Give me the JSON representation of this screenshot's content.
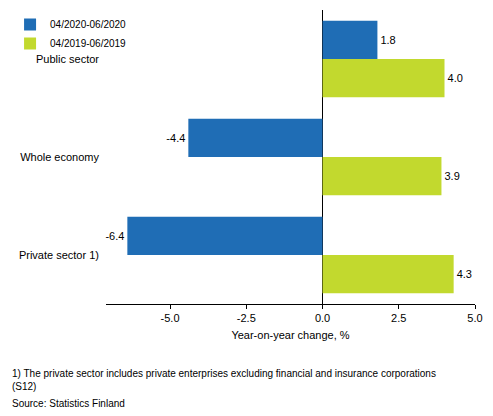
{
  "chart_data": {
    "type": "bar",
    "orientation": "horizontal",
    "categories": [
      "Public sector",
      "Whole economy",
      "Private sector 1)"
    ],
    "series": [
      {
        "name": "04/2020-06/2020",
        "color": "#1f6db5",
        "values": [
          1.8,
          -4.4,
          -6.4
        ],
        "value_labels": [
          "1.8",
          "-4.4",
          "-6.4"
        ]
      },
      {
        "name": "04/2019-06/2019",
        "color": "#c2d92e",
        "values": [
          4.0,
          3.9,
          4.3
        ],
        "value_labels": [
          "4.0",
          "3.9",
          "4.3"
        ]
      }
    ],
    "x_label": "Year-on-year change, %",
    "xlim": [
      -7.1,
      5.0
    ],
    "xticks": [
      {
        "value": -5,
        "label": "-5.0"
      },
      {
        "value": -2.5,
        "label": "-2.5"
      },
      {
        "value": 0,
        "label": "0.0"
      },
      {
        "value": 2.5,
        "label": "2.5"
      },
      {
        "value": 5,
        "label": "5.0"
      }
    ],
    "grid": false,
    "data_labels": true,
    "legend": "top left",
    "footnote": [
      "1) The private sector includes private enterprises excluding financial and insurance corporations",
      "(S12)"
    ],
    "source": "Source: Statistics Finland"
  }
}
